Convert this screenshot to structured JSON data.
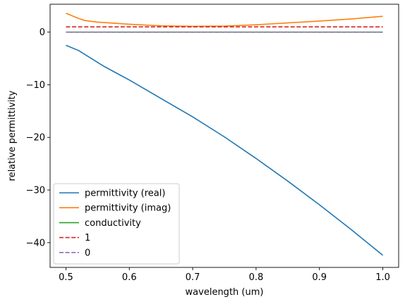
{
  "chart_data": {
    "type": "line",
    "xlabel": "wavelength (um)",
    "ylabel": "relative permittivity",
    "xlim": [
      0.475,
      1.025
    ],
    "ylim": [
      -44.7,
      5.3
    ],
    "xticks": [
      0.5,
      0.6,
      0.7,
      0.8,
      0.9,
      1.0
    ],
    "xtick_labels": [
      "0.5",
      "0.6",
      "0.7",
      "0.8",
      "0.9",
      "1.0"
    ],
    "yticks": [
      0,
      -10,
      -20,
      -30,
      -40
    ],
    "ytick_labels": [
      "0",
      "−10",
      "−20",
      "−30",
      "−40"
    ],
    "grid": false,
    "legend_position": "lower-left",
    "series": [
      {
        "name": "permittivity (real)",
        "color": "#1f77b4",
        "style": "solid",
        "x": [
          0.5,
          0.52,
          0.54,
          0.56,
          0.58,
          0.6,
          0.62,
          0.65,
          0.7,
          0.75,
          0.8,
          0.85,
          0.9,
          0.95,
          1.0
        ],
        "y": [
          -2.5,
          -3.5,
          -5.0,
          -6.5,
          -7.8,
          -9.1,
          -10.5,
          -12.6,
          -16.1,
          -19.9,
          -24.0,
          -28.3,
          -32.8,
          -37.5,
          -42.4
        ]
      },
      {
        "name": "permittivity (imag)",
        "color": "#ff7f0e",
        "style": "solid",
        "x": [
          0.5,
          0.51,
          0.52,
          0.53,
          0.55,
          0.6,
          0.65,
          0.7,
          0.75,
          0.8,
          0.85,
          0.9,
          0.95,
          1.0
        ],
        "y": [
          3.6,
          3.1,
          2.6,
          2.2,
          1.9,
          1.5,
          1.2,
          1.1,
          1.15,
          1.4,
          1.75,
          2.1,
          2.5,
          3.0
        ]
      },
      {
        "name": "conductivity",
        "color": "#2ca02c",
        "style": "solid",
        "x": [
          0.5,
          1.0
        ],
        "y": [
          0.0,
          0.0
        ]
      },
      {
        "name": "1",
        "color": "#d62728",
        "style": "dashed",
        "x": [
          0.5,
          1.0
        ],
        "y": [
          1.0,
          1.0
        ]
      },
      {
        "name": "0",
        "color": "#9467bd",
        "style": "dashed",
        "x": [
          0.5,
          1.0
        ],
        "y": [
          0.0,
          0.0
        ]
      }
    ]
  }
}
